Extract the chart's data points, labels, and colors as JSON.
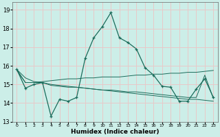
{
  "xlabel": "Humidex (Indice chaleur)",
  "bg_color": "#cceee8",
  "grid_color": "#e8c8c8",
  "line_color": "#1a6b5a",
  "xlim": [
    -0.5,
    23.5
  ],
  "ylim": [
    13.0,
    19.4
  ],
  "yticks": [
    13,
    14,
    15,
    16,
    17,
    18,
    19
  ],
  "xticks": [
    0,
    1,
    2,
    3,
    4,
    5,
    6,
    7,
    8,
    9,
    10,
    11,
    12,
    13,
    14,
    15,
    16,
    17,
    18,
    19,
    20,
    21,
    22,
    23
  ],
  "series_main": [
    15.8,
    14.8,
    15.0,
    15.1,
    13.3,
    14.2,
    14.1,
    14.3,
    16.4,
    17.5,
    18.1,
    18.85,
    17.5,
    17.25,
    16.9,
    15.9,
    15.5,
    14.9,
    14.85,
    14.1,
    14.1,
    14.75,
    15.3,
    14.3
  ],
  "series_reg1": [
    15.8,
    15.35,
    15.15,
    15.1,
    15.0,
    14.95,
    14.9,
    14.85,
    14.8,
    14.75,
    14.7,
    14.65,
    14.6,
    14.55,
    14.5,
    14.45,
    14.4,
    14.35,
    14.3,
    14.25,
    14.2,
    14.2,
    14.15,
    14.1
  ],
  "series_reg2": [
    15.8,
    15.1,
    15.1,
    15.15,
    15.2,
    15.25,
    15.3,
    15.3,
    15.35,
    15.35,
    15.4,
    15.4,
    15.4,
    15.45,
    15.5,
    15.5,
    15.55,
    15.55,
    15.6,
    15.6,
    15.65,
    15.65,
    15.7,
    15.75
  ],
  "series_reg3": [
    15.75,
    15.1,
    15.1,
    15.1,
    14.95,
    14.9,
    14.85,
    14.85,
    14.8,
    14.75,
    14.7,
    14.7,
    14.65,
    14.6,
    14.6,
    14.55,
    14.5,
    14.45,
    14.4,
    14.35,
    14.3,
    14.3,
    15.5,
    14.25
  ]
}
